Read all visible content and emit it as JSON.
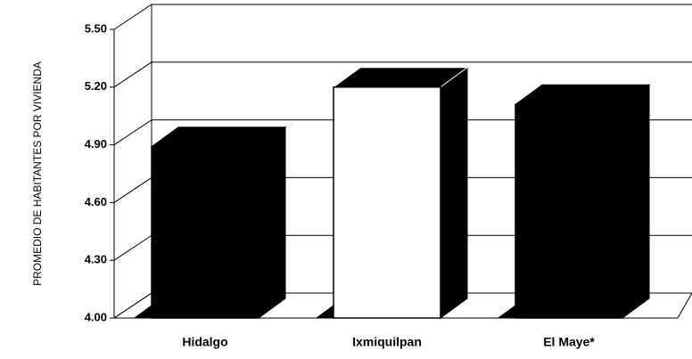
{
  "chart_data": {
    "type": "bar3d",
    "y_label": "PROMEDIO DE HABITANTES POR VIVIENDA",
    "categories": [
      "Hidalgo",
      "Ixmiquilpan",
      "El Maye*"
    ],
    "values": [
      4.89,
      5.2,
      5.11
    ],
    "colors": [
      "#000000",
      "#ffffff",
      "#000000"
    ],
    "ylim": [
      4.0,
      5.5
    ],
    "yticks": [
      {
        "value": 4.0,
        "label": "4.00"
      },
      {
        "value": 4.3,
        "label": "4.30"
      },
      {
        "value": 4.6,
        "label": "4.60"
      },
      {
        "value": 4.9,
        "label": "4.90"
      },
      {
        "value": 5.2,
        "label": "5.20"
      },
      {
        "value": 5.5,
        "label": "5.50"
      }
    ],
    "grid": true
  }
}
